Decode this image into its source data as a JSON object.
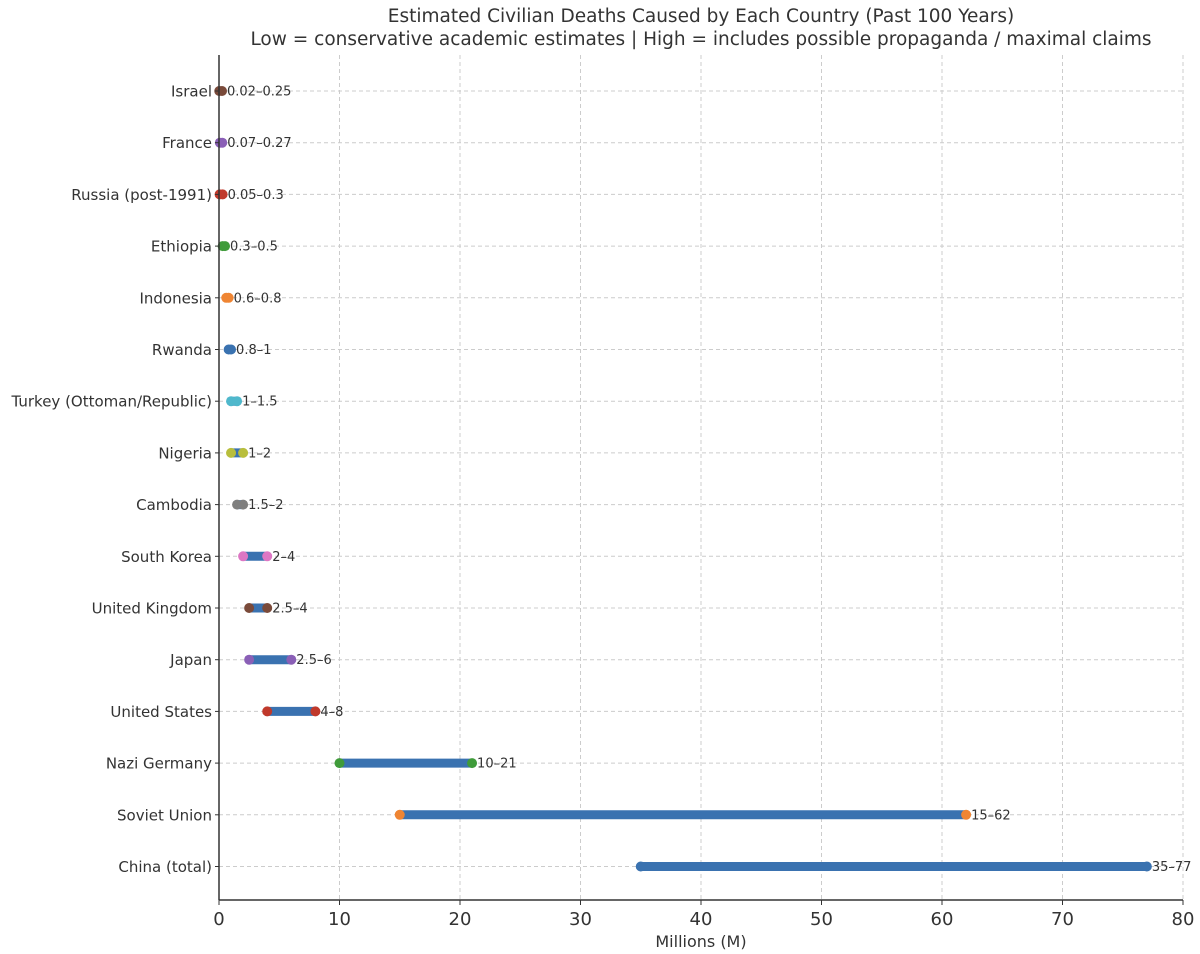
{
  "chart_data": {
    "type": "range",
    "title": "Estimated Civilian Deaths Caused by Each Country (Past 100 Years)",
    "subtitle": "Low = conservative academic estimates | High = includes possible propaganda / maximal claims",
    "xlabel": "Millions (M)",
    "ylabel": "",
    "xlim": [
      0,
      80
    ],
    "xticks": [
      0,
      10,
      20,
      30,
      40,
      50,
      60,
      70,
      80
    ],
    "grid": true,
    "bar_color": "#3a72b0",
    "categories": [
      "Israel",
      "France",
      "Russia (post-1991)",
      "Ethiopia",
      "Indonesia",
      "Rwanda",
      "Turkey (Ottoman/Republic)",
      "Nigeria",
      "Cambodia",
      "South Korea",
      "United Kingdom",
      "Japan",
      "United States",
      "Nazi Germany",
      "Soviet Union",
      "China (total)"
    ],
    "ranges": [
      {
        "name": "Israel",
        "low": 0.02,
        "high": 0.25,
        "label": "0.02–0.25",
        "color": "#7a4a3a"
      },
      {
        "name": "France",
        "low": 0.07,
        "high": 0.27,
        "label": "0.07–0.27",
        "color": "#8a5fb6"
      },
      {
        "name": "Russia (post-1991)",
        "low": 0.05,
        "high": 0.3,
        "label": "0.05–0.3",
        "color": "#c0392b"
      },
      {
        "name": "Ethiopia",
        "low": 0.3,
        "high": 0.5,
        "label": "0.3–0.5",
        "color": "#3f9b3a"
      },
      {
        "name": "Indonesia",
        "low": 0.6,
        "high": 0.8,
        "label": "0.6–0.8",
        "color": "#ef8533"
      },
      {
        "name": "Rwanda",
        "low": 0.8,
        "high": 1,
        "label": "0.8–1",
        "color": "#3a72b0"
      },
      {
        "name": "Turkey (Ottoman/Republic)",
        "low": 1,
        "high": 1.5,
        "label": "1–1.5",
        "color": "#4fb8cc"
      },
      {
        "name": "Nigeria",
        "low": 1,
        "high": 2,
        "label": "1–2",
        "color": "#b8be3c"
      },
      {
        "name": "Cambodia",
        "low": 1.5,
        "high": 2,
        "label": "1.5–2",
        "color": "#7f7f7f"
      },
      {
        "name": "South Korea",
        "low": 2,
        "high": 4,
        "label": "2–4",
        "color": "#dd77c4"
      },
      {
        "name": "United Kingdom",
        "low": 2.5,
        "high": 4,
        "label": "2.5–4",
        "color": "#7a4a3a"
      },
      {
        "name": "Japan",
        "low": 2.5,
        "high": 6,
        "label": "2.5–6",
        "color": "#8a5fb6"
      },
      {
        "name": "United States",
        "low": 4,
        "high": 8,
        "label": "4–8",
        "color": "#c0392b"
      },
      {
        "name": "Nazi Germany",
        "low": 10,
        "high": 21,
        "label": "10–21",
        "color": "#3f9b3a"
      },
      {
        "name": "Soviet Union",
        "low": 15,
        "high": 62,
        "label": "15–62",
        "color": "#ef8533"
      },
      {
        "name": "China (total)",
        "low": 35,
        "high": 77,
        "label": "35–77",
        "color": "#3a72b0"
      }
    ]
  }
}
